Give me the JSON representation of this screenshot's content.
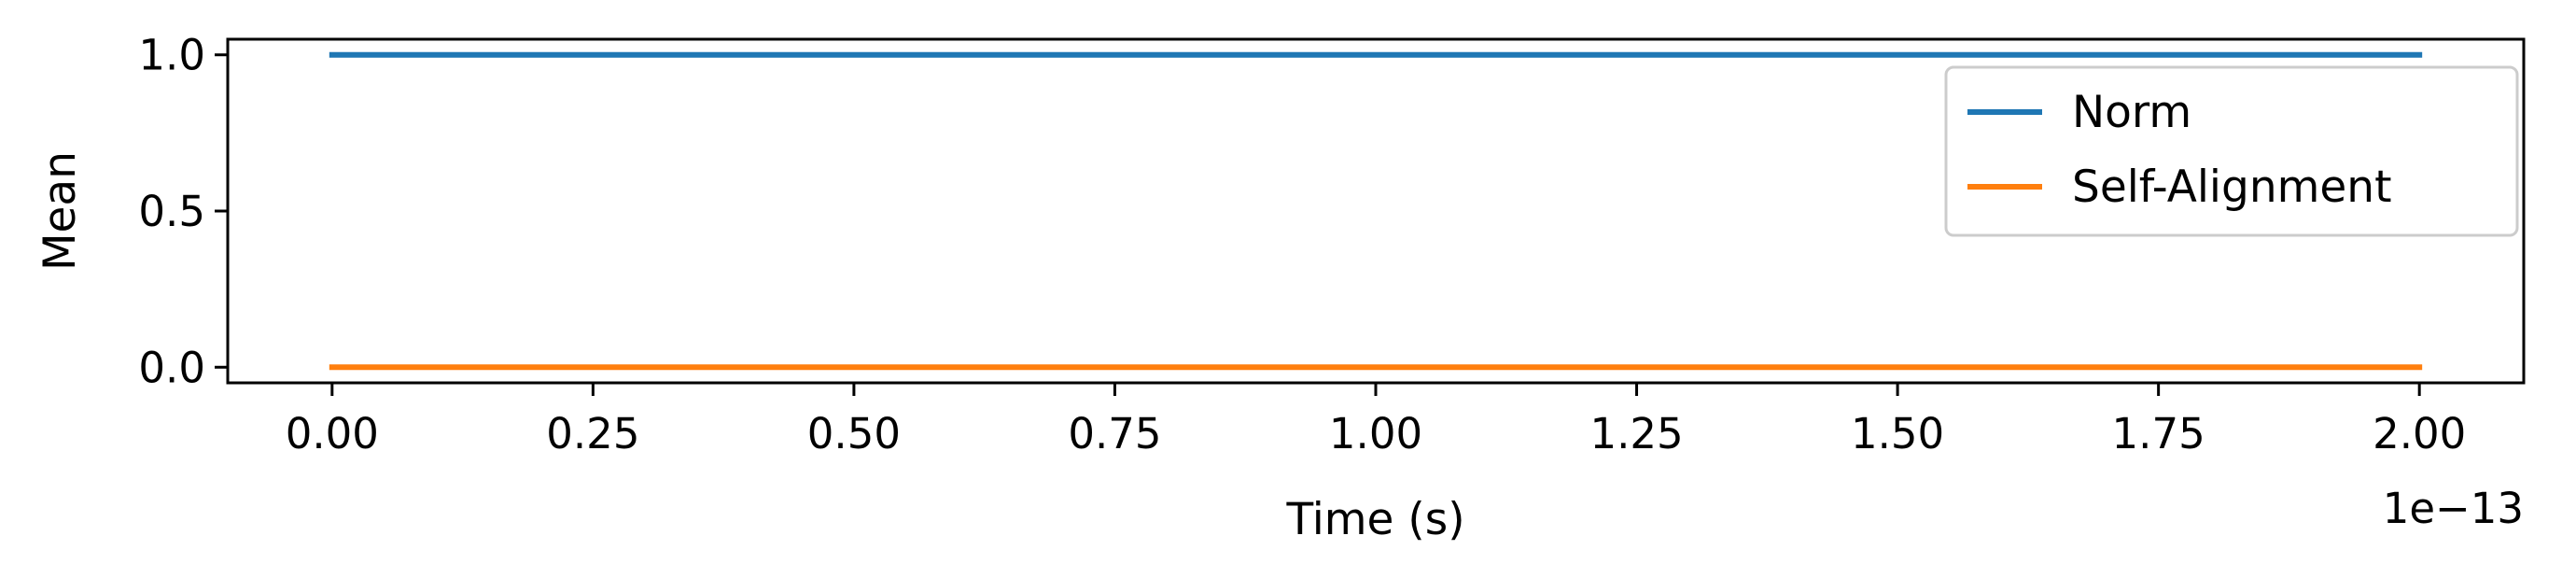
{
  "chart_data": {
    "type": "line",
    "title": "",
    "xlabel": "Time (s)",
    "ylabel": "Mean",
    "x_offset_label": "1e−13",
    "x_scale": 1e-13,
    "xlim": [
      -0.1,
      2.1
    ],
    "ylim": [
      -0.05,
      1.05
    ],
    "x_ticks": [
      0.0,
      0.25,
      0.5,
      0.75,
      1.0,
      1.25,
      1.5,
      1.75,
      2.0
    ],
    "x_tick_labels": [
      "0.00",
      "0.25",
      "0.50",
      "0.75",
      "1.00",
      "1.25",
      "1.50",
      "1.75",
      "2.00"
    ],
    "y_ticks": [
      0.0,
      0.5,
      1.0
    ],
    "y_tick_labels": [
      "0.0",
      "0.5",
      "1.0"
    ],
    "legend_position": "top-right",
    "series": [
      {
        "name": "Norm",
        "color": "#1f77b4",
        "x": [
          0.0,
          2.0
        ],
        "values": [
          1.0,
          1.0
        ]
      },
      {
        "name": "Self-Alignment",
        "color": "#ff7f0e",
        "x": [
          0.0,
          2.0
        ],
        "values": [
          0.0,
          0.0
        ]
      }
    ]
  }
}
